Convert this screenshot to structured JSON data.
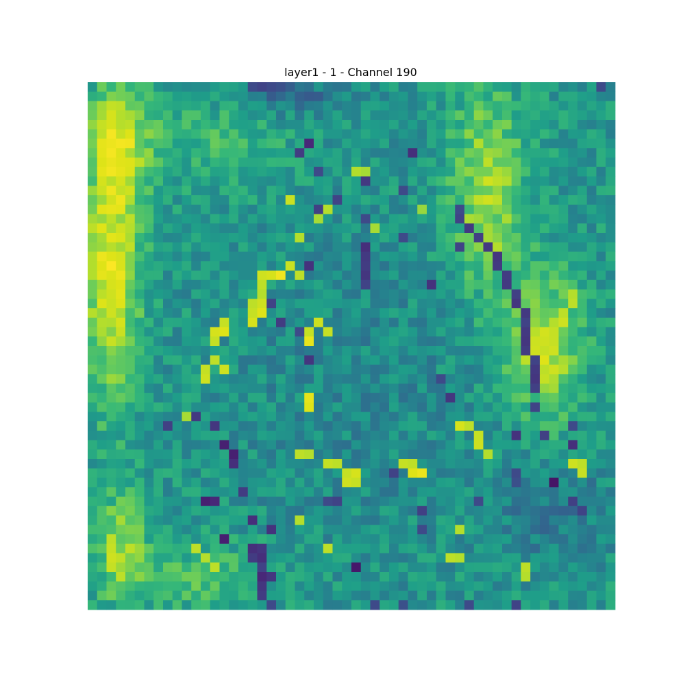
{
  "chart_data": {
    "type": "heatmap",
    "title": "layer1 - 1 - Channel 190",
    "xlabel": "",
    "ylabel": "",
    "axes_visible": false,
    "grid": false,
    "colormap": "viridis",
    "rows": 56,
    "cols": 56,
    "value_range": [
      0,
      1
    ],
    "value_scale": "approximate normalized activation (0 = dark purple, 1 = yellow)",
    "background": {
      "base": 0.48,
      "noise": 0.1,
      "blobs": [
        {
          "cx": 2.0,
          "cy": 19.0,
          "rx": 3.0,
          "ry": 14.0,
          "amp": 0.42
        },
        {
          "cx": 3.0,
          "cy": 5.0,
          "rx": 3.0,
          "ry": 6.0,
          "amp": 0.28
        },
        {
          "cx": 13.0,
          "cy": 6.0,
          "rx": 8.0,
          "ry": 5.0,
          "amp": 0.12
        },
        {
          "cx": 42.0,
          "cy": 11.0,
          "rx": 4.0,
          "ry": 11.0,
          "amp": 0.3
        },
        {
          "cx": 48.0,
          "cy": 28.0,
          "rx": 4.0,
          "ry": 8.0,
          "amp": 0.32
        },
        {
          "cx": 3.0,
          "cy": 49.0,
          "rx": 3.0,
          "ry": 6.0,
          "amp": 0.25
        },
        {
          "cx": 12.0,
          "cy": 52.0,
          "rx": 7.0,
          "ry": 4.0,
          "amp": 0.15
        },
        {
          "cx": 28.0,
          "cy": 33.0,
          "rx": 14.0,
          "ry": 18.0,
          "amp": -0.06
        },
        {
          "cx": 21.0,
          "cy": 1.0,
          "rx": 5.0,
          "ry": 2.0,
          "amp": -0.18
        },
        {
          "cx": 49.0,
          "cy": 45.0,
          "rx": 6.0,
          "ry": 6.0,
          "amp": -0.12
        }
      ]
    },
    "hot_cells": [
      [
        2,
        3,
        0.82
      ],
      [
        3,
        3,
        0.8
      ],
      [
        4,
        4,
        0.82
      ],
      [
        12,
        21,
        0.85
      ],
      [
        13,
        25,
        0.8
      ],
      [
        14,
        24,
        0.78
      ],
      [
        16,
        22,
        0.8
      ],
      [
        16,
        42,
        0.78
      ],
      [
        17,
        42,
        0.82
      ],
      [
        17,
        43,
        0.8
      ],
      [
        19,
        21,
        0.85
      ],
      [
        20,
        22,
        0.82
      ],
      [
        18,
        2,
        0.9
      ],
      [
        19,
        1,
        0.9
      ],
      [
        20,
        1,
        0.92
      ],
      [
        21,
        2,
        0.88
      ],
      [
        22,
        2,
        0.86
      ],
      [
        23,
        2,
        0.85
      ],
      [
        24,
        2,
        0.86
      ],
      [
        20,
        18,
        0.86
      ],
      [
        20,
        19,
        0.88
      ],
      [
        20,
        20,
        0.96
      ],
      [
        21,
        18,
        0.82
      ],
      [
        22,
        18,
        0.8
      ],
      [
        23,
        17,
        0.82
      ],
      [
        23,
        18,
        0.86
      ],
      [
        23,
        19,
        0.92
      ],
      [
        24,
        17,
        0.84
      ],
      [
        24,
        18,
        0.9
      ],
      [
        25,
        14,
        0.84
      ],
      [
        25,
        17,
        0.88
      ],
      [
        25,
        24,
        0.86
      ],
      [
        26,
        13,
        0.88
      ],
      [
        26,
        14,
        0.9
      ],
      [
        26,
        23,
        0.84
      ],
      [
        26,
        25,
        0.84
      ],
      [
        27,
        13,
        0.84
      ],
      [
        27,
        23,
        0.93
      ],
      [
        22,
        51,
        0.8
      ],
      [
        23,
        51,
        0.82
      ],
      [
        24,
        50,
        0.82
      ],
      [
        25,
        50,
        0.86
      ],
      [
        26,
        49,
        0.84
      ],
      [
        27,
        48,
        0.86
      ],
      [
        28,
        48,
        0.84
      ],
      [
        28,
        49,
        0.86
      ],
      [
        29,
        48,
        0.9
      ],
      [
        30,
        49,
        0.86
      ],
      [
        30,
        48,
        0.82
      ],
      [
        31,
        48,
        0.84
      ],
      [
        29,
        13,
        0.82
      ],
      [
        30,
        14,
        0.86
      ],
      [
        30,
        12,
        0.84
      ],
      [
        31,
        12,
        0.86
      ],
      [
        33,
        23,
        0.92
      ],
      [
        34,
        23,
        0.9
      ],
      [
        36,
        39,
        0.88
      ],
      [
        36,
        40,
        0.82
      ],
      [
        37,
        41,
        0.84
      ],
      [
        38,
        41,
        0.86
      ],
      [
        39,
        42,
        0.8
      ],
      [
        39,
        22,
        0.82
      ],
      [
        39,
        23,
        0.8
      ],
      [
        40,
        25,
        0.84
      ],
      [
        40,
        26,
        0.82
      ],
      [
        40,
        33,
        0.84
      ],
      [
        40,
        34,
        0.82
      ],
      [
        40,
        51,
        0.86
      ],
      [
        40,
        52,
        0.82
      ],
      [
        41,
        27,
        0.84
      ],
      [
        41,
        28,
        0.88
      ],
      [
        41,
        34,
        0.9
      ],
      [
        41,
        35,
        0.94
      ],
      [
        41,
        52,
        0.84
      ],
      [
        42,
        27,
        0.86
      ],
      [
        42,
        28,
        0.84
      ],
      [
        48,
        2,
        0.82
      ],
      [
        49,
        2,
        0.84
      ],
      [
        50,
        2,
        0.86
      ],
      [
        51,
        2,
        0.84
      ],
      [
        52,
        3,
        0.82
      ],
      [
        49,
        11,
        0.82
      ],
      [
        50,
        12,
        0.8
      ],
      [
        51,
        13,
        0.82
      ],
      [
        50,
        38,
        0.82
      ],
      [
        50,
        39,
        0.8
      ],
      [
        51,
        46,
        0.82
      ],
      [
        52,
        46,
        0.8
      ],
      [
        49,
        25,
        0.82
      ],
      [
        46,
        22,
        0.8
      ],
      [
        9,
        28,
        0.8
      ],
      [
        9,
        29,
        0.78
      ],
      [
        13,
        35,
        0.76
      ],
      [
        15,
        30,
        0.78
      ],
      [
        35,
        10,
        0.78
      ],
      [
        36,
        13,
        0.8
      ],
      [
        47,
        39,
        0.8
      ]
    ],
    "cold_cells": [
      [
        0,
        17,
        0.2
      ],
      [
        0,
        18,
        0.18
      ],
      [
        0,
        19,
        0.2
      ],
      [
        0,
        20,
        0.22
      ],
      [
        0,
        54,
        0.2
      ],
      [
        6,
        23,
        0.1
      ],
      [
        7,
        22,
        0.16
      ],
      [
        7,
        34,
        0.12
      ],
      [
        9,
        24,
        0.2
      ],
      [
        10,
        29,
        0.15
      ],
      [
        12,
        26,
        0.18
      ],
      [
        13,
        24,
        0.17
      ],
      [
        13,
        39,
        0.2
      ],
      [
        14,
        29,
        0.2
      ],
      [
        14,
        39,
        0.18
      ],
      [
        15,
        40,
        0.15
      ],
      [
        16,
        41,
        0.17
      ],
      [
        17,
        29,
        0.12
      ],
      [
        17,
        39,
        0.18
      ],
      [
        17,
        42,
        0.15
      ],
      [
        18,
        29,
        0.15
      ],
      [
        18,
        43,
        0.14
      ],
      [
        19,
        23,
        0.13
      ],
      [
        19,
        29,
        0.16
      ],
      [
        19,
        43,
        0.15
      ],
      [
        20,
        29,
        0.14
      ],
      [
        20,
        44,
        0.16
      ],
      [
        21,
        29,
        0.18
      ],
      [
        21,
        36,
        0.13
      ],
      [
        21,
        44,
        0.15
      ],
      [
        22,
        45,
        0.17
      ],
      [
        23,
        19,
        0.18
      ],
      [
        23,
        45,
        0.14
      ],
      [
        24,
        46,
        0.15
      ],
      [
        25,
        20,
        0.16
      ],
      [
        25,
        46,
        0.18
      ],
      [
        26,
        46,
        0.15
      ],
      [
        27,
        46,
        0.14
      ],
      [
        28,
        46,
        0.16
      ],
      [
        29,
        23,
        0.14
      ],
      [
        29,
        47,
        0.18
      ],
      [
        30,
        47,
        0.15
      ],
      [
        31,
        47,
        0.14
      ],
      [
        32,
        47,
        0.17
      ],
      [
        33,
        38,
        0.14
      ],
      [
        34,
        47,
        0.18
      ],
      [
        35,
        11,
        0.15
      ],
      [
        36,
        8,
        0.17
      ],
      [
        36,
        13,
        0.14
      ],
      [
        37,
        45,
        0.13
      ],
      [
        37,
        48,
        0.17
      ],
      [
        38,
        14,
        0.08
      ],
      [
        38,
        51,
        0.12
      ],
      [
        39,
        15,
        0.08
      ],
      [
        40,
        15,
        0.12
      ],
      [
        41,
        32,
        0.18
      ],
      [
        42,
        49,
        0.05
      ],
      [
        44,
        12,
        0.08
      ],
      [
        44,
        13,
        0.1
      ],
      [
        44,
        25,
        0.2
      ],
      [
        44,
        26,
        0.18
      ],
      [
        45,
        35,
        0.17
      ],
      [
        46,
        17,
        0.12
      ],
      [
        47,
        19,
        0.13
      ],
      [
        48,
        14,
        0.08
      ],
      [
        49,
        17,
        0.12
      ],
      [
        49,
        18,
        0.14
      ],
      [
        50,
        17,
        0.16
      ],
      [
        50,
        18,
        0.12
      ],
      [
        51,
        18,
        0.18
      ],
      [
        51,
        28,
        0.06
      ],
      [
        52,
        18,
        0.1
      ],
      [
        52,
        19,
        0.14
      ],
      [
        53,
        18,
        0.14
      ],
      [
        54,
        18,
        0.16
      ],
      [
        55,
        19,
        0.2
      ],
      [
        55,
        30,
        0.2
      ],
      [
        55,
        33,
        0.22
      ],
      [
        55,
        40,
        0.2
      ],
      [
        55,
        45,
        0.18
      ],
      [
        44,
        41,
        0.2
      ],
      [
        44,
        51,
        0.17
      ],
      [
        36,
        51,
        0.2
      ],
      [
        31,
        37,
        0.2
      ],
      [
        41,
        45,
        0.2
      ],
      [
        42,
        45,
        0.22
      ],
      [
        45,
        52,
        0.18
      ],
      [
        43,
        16,
        0.16
      ],
      [
        47,
        35,
        0.2
      ],
      [
        26,
        22,
        0.2
      ],
      [
        11,
        33,
        0.2
      ],
      [
        16,
        33,
        0.2
      ]
    ]
  }
}
